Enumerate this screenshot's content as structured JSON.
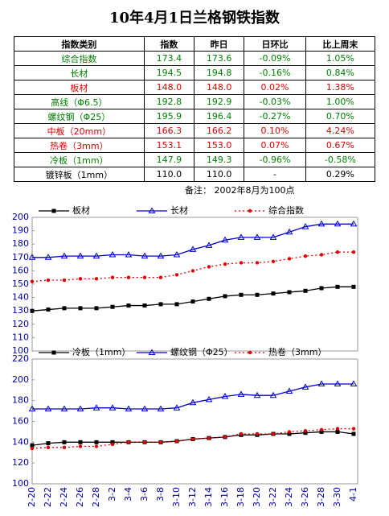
{
  "header": {
    "title": "10年4月1日兰格钢铁指数"
  },
  "table": {
    "columns": [
      "指数类别",
      "指数",
      "昨日",
      "日环比",
      "比上周末"
    ],
    "rows": [
      [
        "综合指数",
        "173.4",
        "173.6",
        "-0.09%",
        "1.05%"
      ],
      [
        "长材",
        "194.5",
        "194.8",
        "-0.16%",
        "0.84%"
      ],
      [
        "板材",
        "148.0",
        "148.0",
        "0.02%",
        "1.38%"
      ],
      [
        "高线（Φ6.5）",
        "192.8",
        "192.9",
        "-0.03%",
        "1.00%"
      ],
      [
        "螺纹钢（Φ25）",
        "195.9",
        "196.4",
        "-0.27%",
        "0.70%"
      ],
      [
        "中板（20mm）",
        "166.3",
        "166.2",
        "0.10%",
        "4.24%"
      ],
      [
        "热卷（3mm）",
        "153.1",
        "153.0",
        "0.07%",
        "0.67%"
      ],
      [
        "冷板（1mm）",
        "147.9",
        "149.3",
        "-0.96%",
        "-0.58%"
      ],
      [
        "镀锌板（1mm）",
        "110.0",
        "110.0",
        "-",
        "0.29%"
      ]
    ],
    "row_colors": [
      "#008000",
      "#008000",
      "#e00000",
      "#008000",
      "#008000",
      "#e00000",
      "#e00000",
      "#008000",
      "#000000"
    ],
    "note": "备注：  2002年8月为100点"
  },
  "chart_data": [
    {
      "type": "line",
      "ylim": [
        100,
        200
      ],
      "yticks": [
        100,
        110,
        120,
        130,
        140,
        150,
        160,
        170,
        180,
        190,
        200
      ],
      "grid": false,
      "series": [
        {
          "name": "板材",
          "color": "#000000",
          "marker": "square",
          "values": [
            130,
            131,
            132,
            132,
            132,
            133,
            134,
            134,
            135,
            135,
            137,
            139,
            141,
            142,
            142,
            143,
            144,
            145,
            147,
            148,
            148
          ]
        },
        {
          "name": "长材",
          "color": "#0000cc",
          "marker": "triangle",
          "values": [
            170,
            170,
            171,
            171,
            171,
            172,
            172,
            171,
            171,
            172,
            176,
            179,
            183,
            185,
            185,
            185,
            189,
            193,
            195,
            195,
            195
          ]
        },
        {
          "name": "综合指数",
          "color": "#e00000",
          "marker": "dot",
          "dashed": true,
          "values": [
            152,
            153,
            153,
            154,
            154,
            155,
            155,
            155,
            155,
            157,
            160,
            163,
            165,
            166,
            166,
            167,
            169,
            171,
            172,
            174,
            174
          ]
        }
      ]
    },
    {
      "type": "line",
      "ylim": [
        100,
        220
      ],
      "yticks": [
        100,
        120,
        140,
        160,
        180,
        200,
        220
      ],
      "grid": false,
      "categories": [
        "2-20",
        "2-22",
        "2-24",
        "2-26",
        "2-28",
        "3-2",
        "3-4",
        "3-6",
        "3-8",
        "3-10",
        "3-12",
        "3-14",
        "3-16",
        "3-18",
        "3-20",
        "3-22",
        "3-24",
        "3-26",
        "3-28",
        "3-30",
        "4-1"
      ],
      "series": [
        {
          "name": "冷板（1mm）",
          "color": "#000000",
          "marker": "square",
          "values": [
            137,
            139,
            140,
            140,
            140,
            140,
            140,
            140,
            140,
            141,
            143,
            144,
            145,
            147,
            147,
            148,
            148,
            149,
            150,
            150,
            148
          ]
        },
        {
          "name": "螺纹钢（Φ25）",
          "color": "#0000cc",
          "marker": "triangle",
          "values": [
            172,
            172,
            172,
            172,
            173,
            173,
            172,
            172,
            172,
            173,
            178,
            181,
            184,
            186,
            185,
            185,
            189,
            193,
            196,
            196,
            196
          ]
        },
        {
          "name": "热卷（3mm）",
          "color": "#e00000",
          "marker": "dot",
          "dashed": true,
          "values": [
            134,
            135,
            135,
            136,
            136,
            138,
            140,
            140,
            140,
            141,
            143,
            144,
            145,
            148,
            148,
            148,
            150,
            151,
            152,
            153,
            153
          ]
        }
      ]
    }
  ]
}
